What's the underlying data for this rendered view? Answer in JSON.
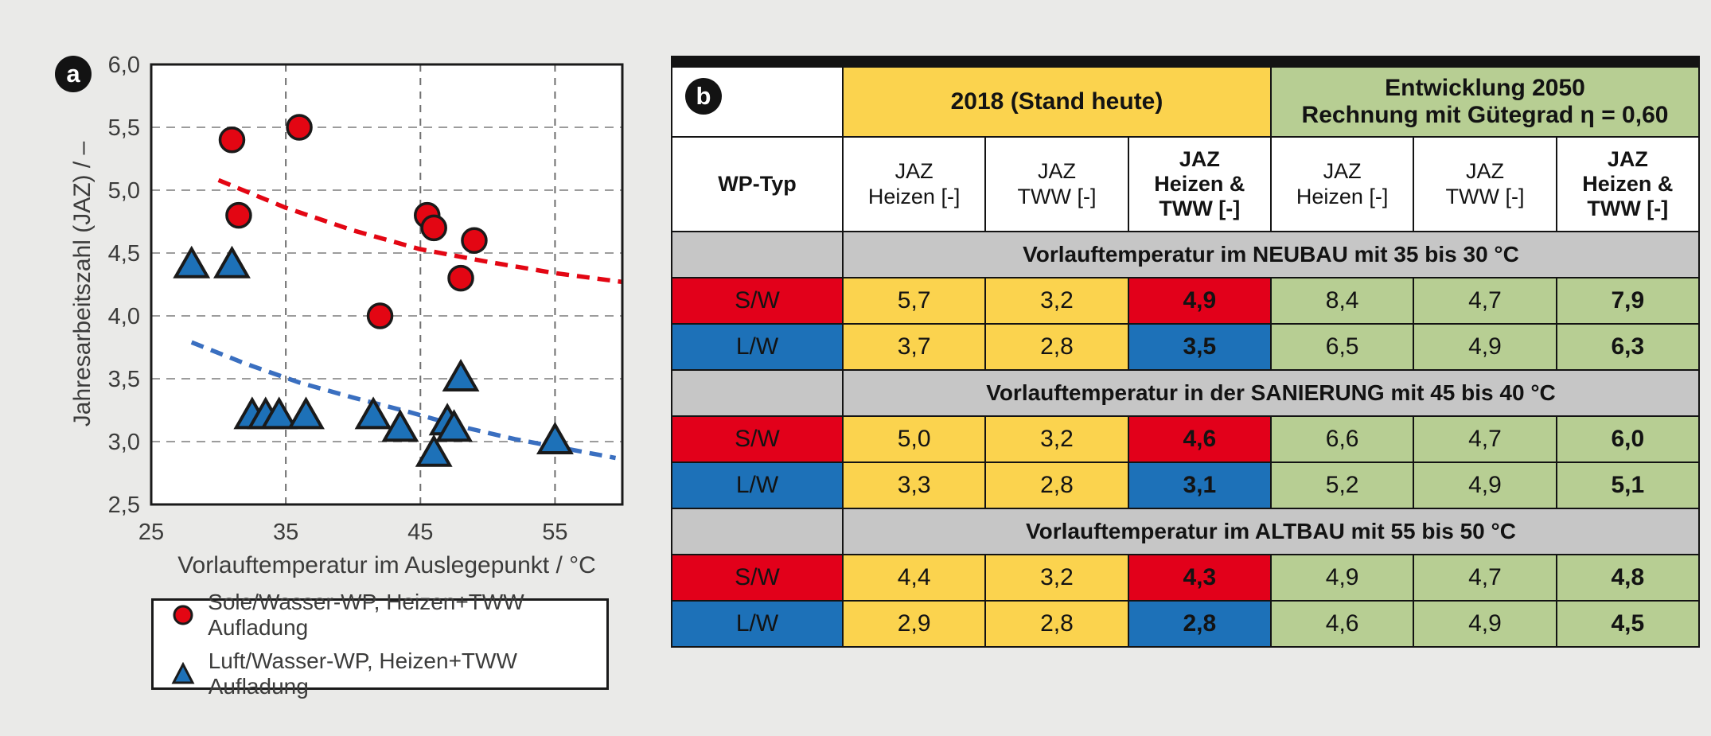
{
  "colors": {
    "background": "#eaeae8",
    "red": "#e30613",
    "blue": "#1d71b8",
    "trend_red": "#e30613",
    "trend_blue": "#3a6fc0",
    "yellow": "#fbd34e",
    "green": "#b7ce93",
    "lavender": "#c9d4eb",
    "band_gray": "#c6c6c6",
    "frame": "#1a1a1a"
  },
  "panel_a": {
    "badge": "a",
    "ylabel": "Jahresarbeitszahl (JAZ) / –",
    "xlabel": "Vorlauftemperatur im Auslegepunkt / °C",
    "legend": [
      {
        "marker": "circle",
        "label": "Sole/Wasser-WP, Heizen+TWW Aufladung"
      },
      {
        "marker": "triangle",
        "label": "Luft/Wasser-WP, Heizen+TWW Aufladung"
      }
    ]
  },
  "chart_data": {
    "type": "scatter",
    "title": "",
    "xlabel": "Vorlauftemperatur im Auslegepunkt / °C",
    "ylabel": "Jahresarbeitszahl (JAZ) / –",
    "xlim": [
      25,
      60
    ],
    "ylim": [
      2.5,
      6.0
    ],
    "grid": true,
    "x_ticks": [
      {
        "label": "25",
        "value": 25
      },
      {
        "label": "35",
        "value": 35
      },
      {
        "label": "45",
        "value": 45
      },
      {
        "label": "55",
        "value": 55
      }
    ],
    "y_ticks": [
      {
        "label": "2,5",
        "value": 2.5
      },
      {
        "label": "3,0",
        "value": 3.0
      },
      {
        "label": "3,5",
        "value": 3.5
      },
      {
        "label": "4,0",
        "value": 4.0
      },
      {
        "label": "4,5",
        "value": 4.5
      },
      {
        "label": "5,0",
        "value": 5.0
      },
      {
        "label": "5,5",
        "value": 5.5
      },
      {
        "label": "6,0",
        "value": 6.0
      }
    ],
    "series": [
      {
        "name": "Sole/Wasser-WP, Heizen+TWW Aufladung",
        "marker": "circle",
        "color": "#e30613",
        "points": [
          [
            31,
            5.4
          ],
          [
            36,
            5.5
          ],
          [
            31.5,
            4.8
          ],
          [
            42,
            4.0
          ],
          [
            45.5,
            4.8
          ],
          [
            46,
            4.7
          ],
          [
            48,
            4.3
          ],
          [
            49,
            4.6
          ]
        ],
        "trend": [
          [
            30,
            5.08
          ],
          [
            35,
            4.86
          ],
          [
            40,
            4.68
          ],
          [
            45,
            4.53
          ],
          [
            50,
            4.43
          ],
          [
            55,
            4.34
          ],
          [
            60,
            4.27
          ]
        ]
      },
      {
        "name": "Luft/Wasser-WP, Heizen+TWW Aufladung",
        "marker": "triangle",
        "color": "#1d71b8",
        "trend_color": "#3a6fc0",
        "points": [
          [
            28,
            4.4
          ],
          [
            31,
            4.4
          ],
          [
            32.5,
            3.2
          ],
          [
            33.5,
            3.2
          ],
          [
            34.5,
            3.2
          ],
          [
            36.5,
            3.2
          ],
          [
            41.5,
            3.2
          ],
          [
            43.5,
            3.1
          ],
          [
            46,
            2.9
          ],
          [
            47,
            3.15
          ],
          [
            47.5,
            3.1
          ],
          [
            48,
            3.5
          ],
          [
            55,
            3.0
          ]
        ],
        "trend": [
          [
            28,
            3.79
          ],
          [
            32,
            3.62
          ],
          [
            36,
            3.47
          ],
          [
            40,
            3.35
          ],
          [
            44,
            3.24
          ],
          [
            48,
            3.12
          ],
          [
            52,
            3.02
          ],
          [
            56,
            2.94
          ],
          [
            59.5,
            2.87
          ]
        ]
      }
    ],
    "legend_position": "below"
  },
  "table": {
    "badge": "b",
    "group_headers": [
      {
        "label_lines": [
          "2018 (Stand heute)"
        ],
        "color": "#fbd34e",
        "span": 3
      },
      {
        "label_lines": [
          "Entwicklung 2050",
          "Rechnung mit Gütegrad η = 0,60"
        ],
        "color": "#b7ce93",
        "span": 3
      }
    ],
    "corner_header": "WP-Typ",
    "col_headers": [
      {
        "lines": [
          "JAZ",
          "Heizen [-]"
        ],
        "bold": false
      },
      {
        "lines": [
          "JAZ",
          "TWW [-]"
        ],
        "bold": false
      },
      {
        "lines": [
          "JAZ",
          "Heizen &",
          "TWW [-]"
        ],
        "bold": true
      },
      {
        "lines": [
          "JAZ",
          "Heizen [-]"
        ],
        "bold": false
      },
      {
        "lines": [
          "JAZ",
          "TWW [-]"
        ],
        "bold": false
      },
      {
        "lines": [
          "JAZ",
          "Heizen &",
          "TWW [-]"
        ],
        "bold": true
      }
    ],
    "sections": [
      {
        "title": "Vorlauftemperatur im NEUBAU mit 35 bis 30 °C",
        "rows": [
          {
            "type": "S/W",
            "values": [
              "5,7",
              "3,2",
              "4,9",
              "8,4",
              "4,7",
              "7,9"
            ]
          },
          {
            "type": "L/W",
            "values": [
              "3,7",
              "2,8",
              "3,5",
              "6,5",
              "4,9",
              "6,3"
            ]
          }
        ]
      },
      {
        "title": "Vorlauftemperatur in der SANIERUNG mit 45 bis 40 °C",
        "rows": [
          {
            "type": "S/W",
            "values": [
              "5,0",
              "3,2",
              "4,6",
              "6,6",
              "4,7",
              "6,0"
            ]
          },
          {
            "type": "L/W",
            "values": [
              "3,3",
              "2,8",
              "3,1",
              "5,2",
              "4,9",
              "5,1"
            ]
          }
        ]
      },
      {
        "title": "Vorlauftemperatur im ALTBAU mit 55 bis 50 °C",
        "rows": [
          {
            "type": "S/W",
            "values": [
              "4,4",
              "3,2",
              "4,3",
              "4,9",
              "4,7",
              "4,8"
            ]
          },
          {
            "type": "L/W",
            "values": [
              "2,9",
              "2,8",
              "2,8",
              "4,6",
              "4,9",
              "4,5"
            ]
          }
        ]
      }
    ]
  }
}
